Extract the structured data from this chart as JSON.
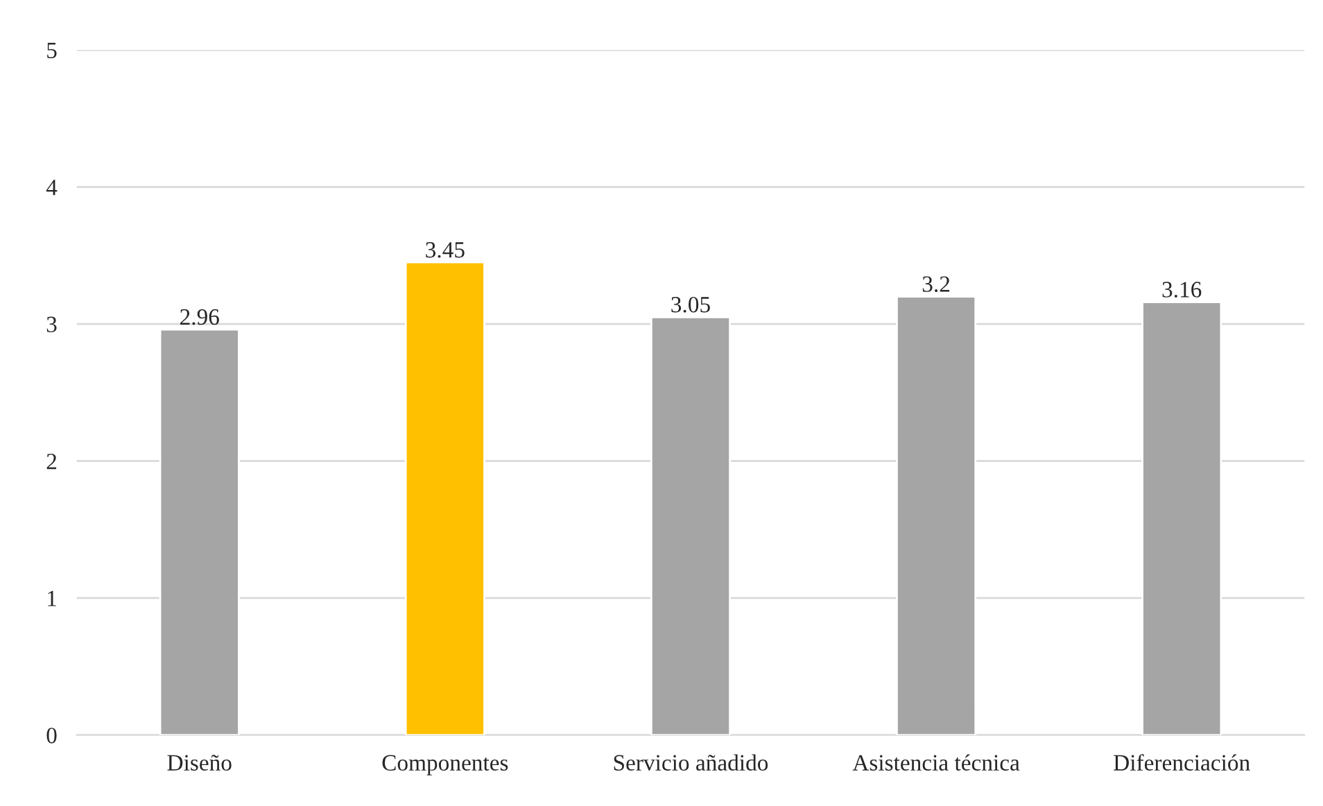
{
  "chart_data": {
    "type": "bar",
    "categories": [
      "Diseño",
      "Componentes",
      "Servicio añadido",
      "Asistencia técnica",
      "Diferenciación"
    ],
    "values": [
      2.96,
      3.45,
      3.05,
      3.2,
      3.16
    ],
    "colors": [
      "#a5a5a5",
      "#ffc000",
      "#a5a5a5",
      "#a5a5a5",
      "#a5a5a5"
    ],
    "ylim": [
      0,
      5
    ],
    "yticks": [
      0,
      1,
      2,
      3,
      4,
      5
    ],
    "grid": "y",
    "data_labels": true
  }
}
